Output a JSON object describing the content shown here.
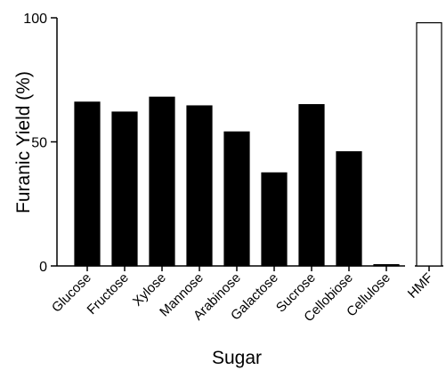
{
  "chart_data": {
    "type": "bar",
    "xlabel": "Sugar",
    "ylabel": "Furanic Yield (%)",
    "ylim": [
      0,
      100
    ],
    "yticks": [
      0,
      50,
      100
    ],
    "ytick_labels": [
      "0",
      "50",
      "100"
    ],
    "grid": false,
    "legend": "none",
    "categories": [
      "Glucose",
      "Fructose",
      "Xylose",
      "Mannose",
      "Arabinose",
      "Galactose",
      "Sucrose",
      "Cellobiose",
      "Cellulose",
      "HMF"
    ],
    "values": [
      66,
      62,
      68,
      64.5,
      54,
      37.5,
      65,
      46,
      0.5,
      98
    ],
    "fills": [
      "#000000",
      "#000000",
      "#000000",
      "#000000",
      "#000000",
      "#000000",
      "#000000",
      "#000000",
      "#000000",
      "#ffffff"
    ]
  },
  "colors": {
    "bar_fill": "#000000",
    "reference_bar_fill": "#ffffff",
    "axis": "#000000"
  }
}
